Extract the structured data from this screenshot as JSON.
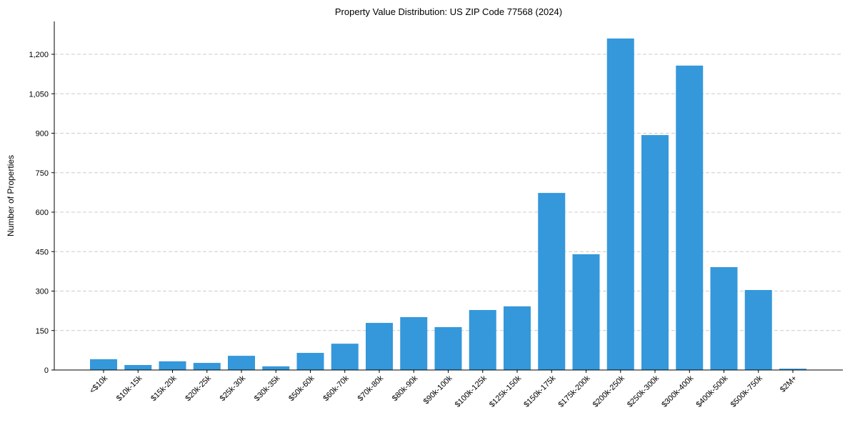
{
  "chart_data": {
    "type": "bar",
    "title": "Property Value Distribution: US ZIP Code 77568 (2024)",
    "xlabel": "",
    "ylabel": "Number of Properties",
    "ylim": [
      0,
      1325
    ],
    "yticks": [
      0,
      150,
      300,
      450,
      600,
      750,
      900,
      1050,
      1200
    ],
    "ytick_labels": [
      "0",
      "150",
      "300",
      "450",
      "600",
      "750",
      "900",
      "1,050",
      "1,200"
    ],
    "grid": "y-dashed",
    "bar_color": "#3498db",
    "categories": [
      "<$10k",
      "$10k-15k",
      "$15k-20k",
      "$20k-25k",
      "$25k-30k",
      "$30k-35k",
      "$50k-60k",
      "$60k-70k",
      "$70k-80k",
      "$80k-90k",
      "$90k-100k",
      "$100k-125k",
      "$125k-150k",
      "$150k-175k",
      "$175k-200k",
      "$200k-250k",
      "$250k-300k",
      "$300k-400k",
      "$400k-500k",
      "$500k-750k",
      "$2M+"
    ],
    "values": [
      41,
      19,
      33,
      27,
      54,
      14,
      65,
      100,
      179,
      201,
      163,
      228,
      242,
      673,
      440,
      1260,
      893,
      1157,
      391,
      304,
      5
    ]
  }
}
